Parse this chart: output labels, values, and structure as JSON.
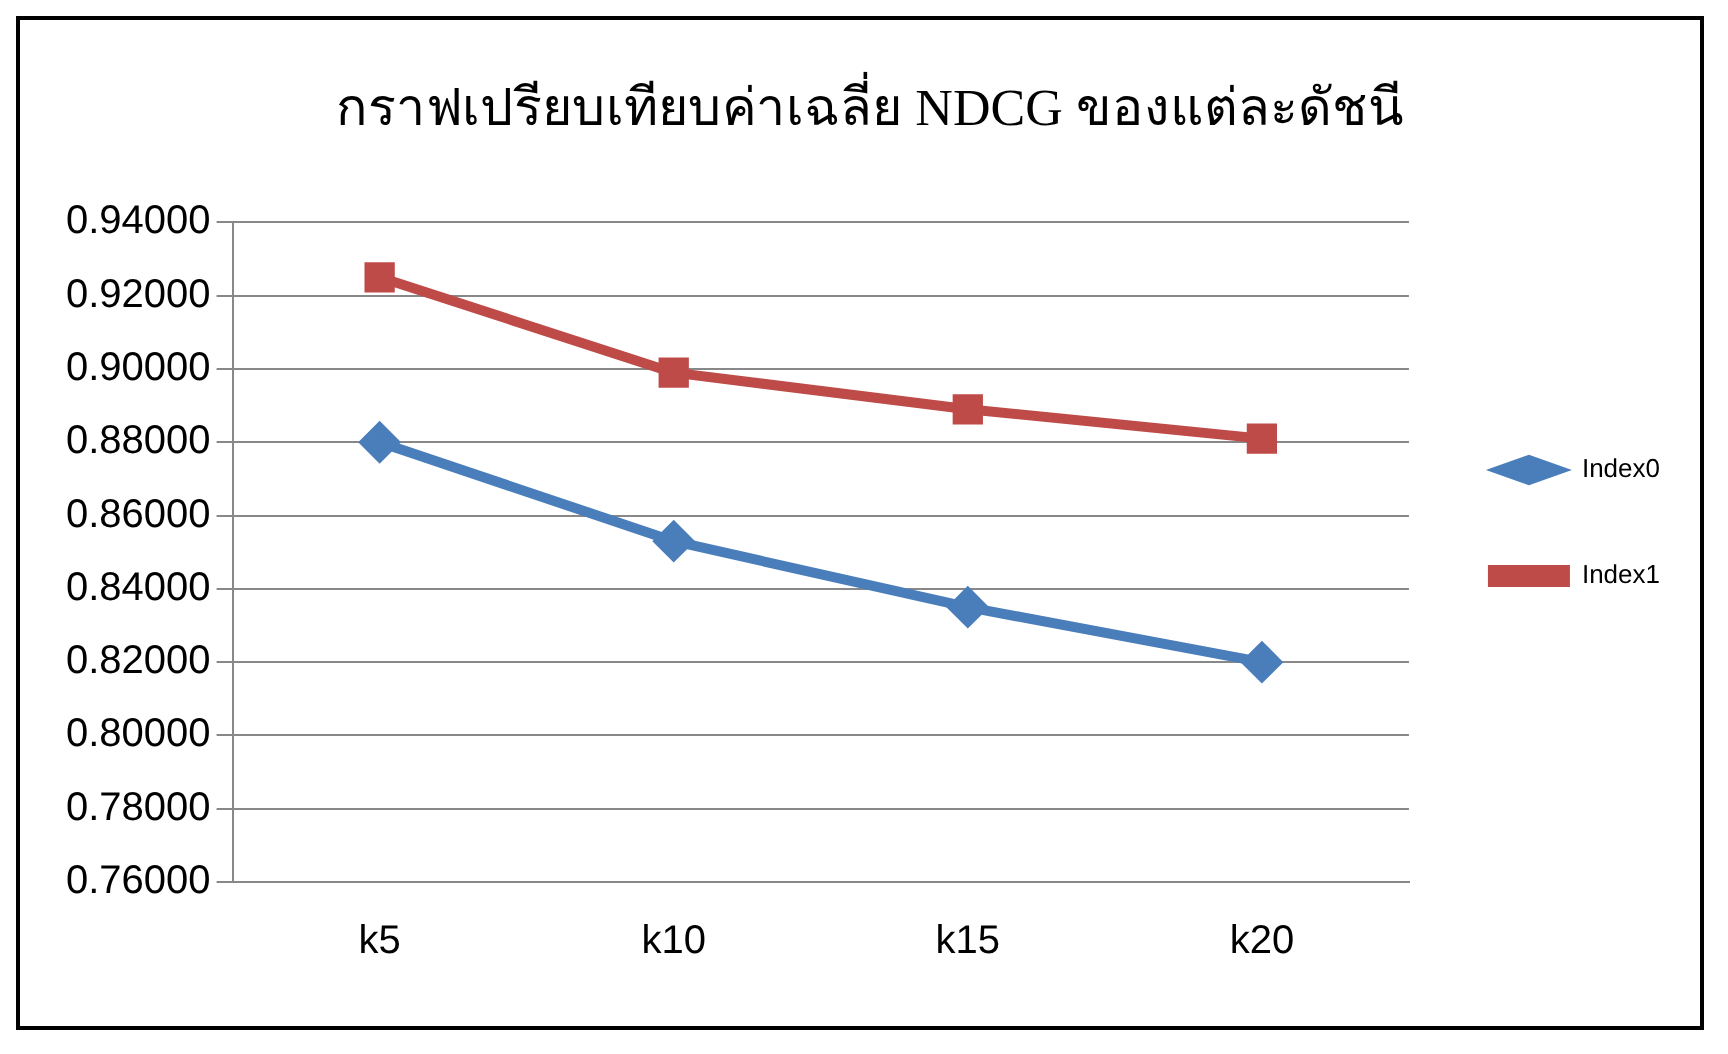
{
  "chart_data": {
    "type": "line",
    "title": "กราฟเปรียบเทียบค่าเฉลี่ย NDCG ของแต่ละดัชนี",
    "categories": [
      "k5",
      "k10",
      "k15",
      "k20"
    ],
    "series": [
      {
        "name": "Index0",
        "color": "#4a7ebb",
        "marker": "diamond",
        "values": [
          0.88,
          0.853,
          0.835,
          0.82
        ]
      },
      {
        "name": "Index1",
        "color": "#be4b48",
        "marker": "square",
        "values": [
          0.925,
          0.899,
          0.889,
          0.881
        ]
      }
    ],
    "ylim": [
      0.76,
      0.94
    ],
    "yticks": [
      {
        "value": 0.76,
        "label": "0.76000"
      },
      {
        "value": 0.78,
        "label": "0.78000"
      },
      {
        "value": 0.8,
        "label": "0.80000"
      },
      {
        "value": 0.82,
        "label": "0.82000"
      },
      {
        "value": 0.84,
        "label": "0.84000"
      },
      {
        "value": 0.86,
        "label": "0.86000"
      },
      {
        "value": 0.88,
        "label": "0.88000"
      },
      {
        "value": 0.9,
        "label": "0.90000"
      },
      {
        "value": 0.92,
        "label": "0.92000"
      },
      {
        "value": 0.94,
        "label": "0.94000"
      }
    ],
    "grid": "y",
    "legend": "right",
    "line_style": "solid"
  }
}
